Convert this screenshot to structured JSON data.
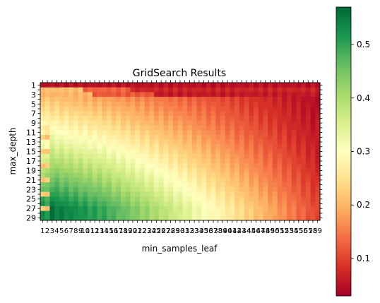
{
  "chart_data": {
    "type": "heatmap",
    "title": "GridSearch Results",
    "xlabel": "min_samples_leaf",
    "ylabel": "max_depth",
    "x_values": [
      1,
      2,
      3,
      4,
      5,
      6,
      7,
      8,
      9,
      10,
      11,
      12,
      13,
      14,
      15,
      16,
      17,
      18,
      19,
      20,
      21,
      22,
      23,
      24,
      25,
      26,
      27,
      28,
      29,
      30,
      31,
      32,
      33,
      34,
      35,
      36,
      37,
      38,
      39,
      40,
      41,
      42,
      43,
      44,
      45,
      46,
      47,
      48,
      49,
      50,
      51,
      52,
      53,
      54,
      55,
      56,
      57,
      58,
      59
    ],
    "y_values": [
      1,
      2,
      3,
      4,
      5,
      6,
      7,
      8,
      9,
      10,
      11,
      12,
      13,
      14,
      15,
      16,
      17,
      18,
      19,
      20,
      21,
      22,
      23,
      24,
      25,
      26,
      27,
      28,
      29
    ],
    "x_tick_labels": [
      "1",
      "2",
      "3",
      "4",
      "5",
      "6",
      "7",
      "8",
      "9",
      "10",
      "11",
      "12",
      "13",
      "14",
      "15",
      "16",
      "17",
      "18",
      "19",
      "20",
      "21",
      "22",
      "23",
      "24",
      "25",
      "26",
      "27",
      "28",
      "29",
      "30",
      "31",
      "32",
      "33",
      "34",
      "35",
      "36",
      "37",
      "38",
      "39",
      "40",
      "41",
      "42",
      "43",
      "44",
      "45",
      "46",
      "47",
      "48",
      "49",
      "50",
      "51",
      "52",
      "53",
      "54",
      "55",
      "56",
      "57",
      "58",
      "59"
    ],
    "y_tick_labels": [
      "1",
      "",
      "3",
      "",
      "5",
      "",
      "7",
      "",
      "9",
      "",
      "11",
      "",
      "13",
      "",
      "15",
      "",
      "17",
      "",
      "19",
      "",
      "21",
      "",
      "23",
      "",
      "25",
      "",
      "27",
      "",
      "29"
    ],
    "colormap": "RdYlGn",
    "colorbar": {
      "range": [
        0.03,
        0.57
      ],
      "ticks": [
        0.1,
        0.2,
        0.3,
        0.4,
        0.5
      ],
      "tick_labels": [
        "0.1",
        "0.2",
        "0.3",
        "0.4",
        "0.5"
      ]
    },
    "value_description": "Cell values range from about 0.03 (red, deep trees with large leaves at top right is low; shallow depth rows are red/orange) to about 0.57 (green, deep trees with small min_samples_leaf at bottom left).",
    "grid": false
  }
}
